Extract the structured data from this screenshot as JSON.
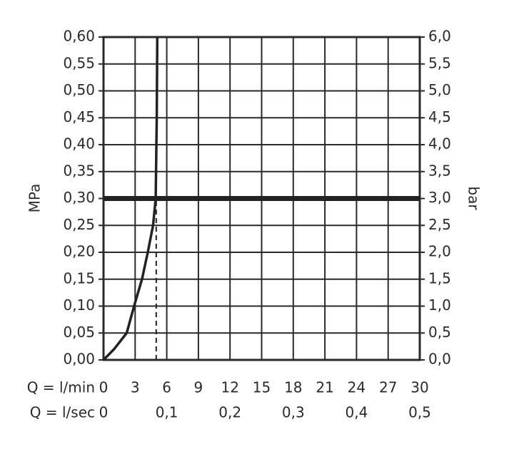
{
  "chart_data": {
    "type": "line",
    "y_label": "MPa",
    "y2_label": "bar",
    "x_label": "Q = l/min",
    "x2_label": "Q = l/sec",
    "xlim": [
      0,
      30
    ],
    "xticks": [
      0,
      3,
      6,
      9,
      12,
      15,
      18,
      21,
      24,
      27,
      30
    ],
    "x2lim": [
      0,
      0.5
    ],
    "x2ticks": [
      0,
      {
        "value": 0.1,
        "label": "0,1"
      },
      {
        "value": 0.2,
        "label": "0,2"
      },
      {
        "value": 0.3,
        "label": "0,3"
      },
      {
        "value": 0.4,
        "label": "0,4"
      },
      {
        "value": 0.5,
        "label": "0,5"
      }
    ],
    "ylim": [
      0,
      0.6
    ],
    "yticks": [
      {
        "value": 0,
        "label": "0,00"
      },
      {
        "value": 0.05,
        "label": "0,05"
      },
      {
        "value": 0.1,
        "label": "0,10"
      },
      {
        "value": 0.15,
        "label": "0,15"
      },
      {
        "value": 0.2,
        "label": "0,20"
      },
      {
        "value": 0.25,
        "label": "0,25"
      },
      {
        "value": 0.3,
        "label": "0,30"
      },
      {
        "value": 0.35,
        "label": "0,35"
      },
      {
        "value": 0.4,
        "label": "0,40"
      },
      {
        "value": 0.45,
        "label": "0,45"
      },
      {
        "value": 0.5,
        "label": "0,50"
      },
      {
        "value": 0.55,
        "label": "0,55"
      },
      {
        "value": 0.6,
        "label": "0,60"
      }
    ],
    "y2lim": [
      0,
      6
    ],
    "y2ticks": [
      {
        "value": 0,
        "label": "0,0"
      },
      {
        "value": 0.5,
        "label": "0,5"
      },
      {
        "value": 1,
        "label": "1,0"
      },
      {
        "value": 1.5,
        "label": "1,5"
      },
      {
        "value": 2,
        "label": "2,0"
      },
      {
        "value": 2.5,
        "label": "2,5"
      },
      {
        "value": 3,
        "label": "3,0"
      },
      {
        "value": 3.5,
        "label": "3,5"
      },
      {
        "value": 4,
        "label": "4,0"
      },
      {
        "value": 4.5,
        "label": "4,5"
      },
      {
        "value": 5,
        "label": "5,0"
      },
      {
        "value": 5.5,
        "label": "5,5"
      },
      {
        "value": 6,
        "label": "6,0"
      }
    ],
    "grid": true,
    "x": [
      0,
      1,
      2.2,
      2.9,
      3.65,
      4.2,
      4.7,
      4.95,
      5.05,
      5.1
    ],
    "series": [
      {
        "color": "#222222",
        "values": [
          0,
          0.02,
          0.05,
          0.1,
          0.15,
          0.2,
          0.25,
          0.3,
          0.45,
          0.6
        ]
      }
    ],
    "hline": 0.3,
    "vline": 5
  }
}
